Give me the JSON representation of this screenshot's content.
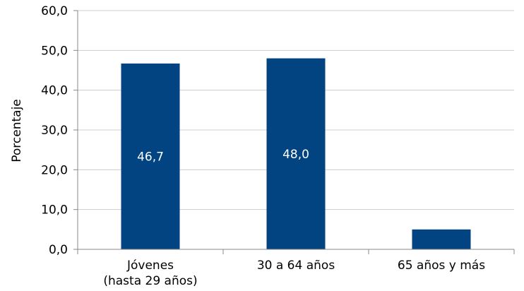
{
  "chart_data": {
    "type": "bar",
    "categories": [
      [
        "Jóvenes",
        "(hasta 29 años)"
      ],
      [
        "30 a 64 años"
      ],
      [
        "65 años y más"
      ]
    ],
    "values": [
      46.7,
      48.0,
      5.0
    ],
    "data_labels": [
      "46,7",
      "48,0",
      ""
    ],
    "y_ticks": [
      "0,0",
      "10,0",
      "20,0",
      "30,0",
      "40,0",
      "50,0",
      "60,0"
    ],
    "ylabel": "Porcentaje",
    "xlabel": "",
    "title": "",
    "ylim": [
      0,
      60
    ],
    "grid": true,
    "legend": "none",
    "bar_color": "#024381",
    "grid_color": "#cccccc",
    "axis_color": "#888888"
  }
}
